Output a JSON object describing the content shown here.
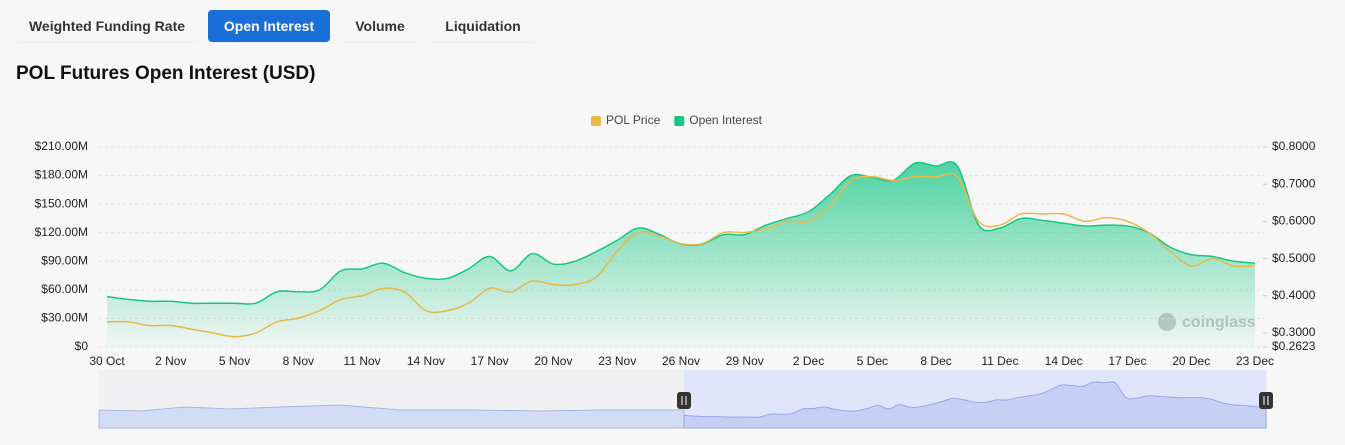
{
  "tabs": [
    "Weighted Funding Rate",
    "Open Interest",
    "Volume",
    "Liquidation"
  ],
  "active_tab": 1,
  "watermark": "coinglass",
  "chart_data": {
    "type": "area",
    "title": "POL Futures Open Interest (USD)",
    "categories": [
      "30 Oct",
      null,
      null,
      "2 Nov",
      null,
      null,
      "5 Nov",
      null,
      null,
      "8 Nov",
      null,
      null,
      "11 Nov",
      null,
      null,
      "14 Nov",
      null,
      null,
      "17 Nov",
      null,
      null,
      "20 Nov",
      null,
      null,
      "23 Nov",
      null,
      null,
      "26 Nov",
      null,
      null,
      "29 Nov",
      null,
      null,
      "2 Dec",
      null,
      null,
      "5 Dec",
      null,
      null,
      "8 Dec",
      null,
      null,
      "11 Dec",
      null,
      null,
      "14 Dec",
      null,
      null,
      "17 Dec",
      null,
      null,
      "20 Dec",
      null,
      null,
      "23 Dec"
    ],
    "series": [
      {
        "name": "POL Price",
        "color": "#e8b84a",
        "axis": "y2",
        "values": [
          0.33,
          0.33,
          0.32,
          0.32,
          0.31,
          0.3,
          0.29,
          0.3,
          0.33,
          0.34,
          0.36,
          0.39,
          0.4,
          0.42,
          0.41,
          0.36,
          0.36,
          0.38,
          0.42,
          0.41,
          0.44,
          0.43,
          0.43,
          0.45,
          0.52,
          0.57,
          0.56,
          0.54,
          0.54,
          0.57,
          0.57,
          0.58,
          0.6,
          0.6,
          0.64,
          0.71,
          0.72,
          0.71,
          0.72,
          0.72,
          0.72,
          0.6,
          0.59,
          0.62,
          0.62,
          0.62,
          0.6,
          0.61,
          0.6,
          0.57,
          0.52,
          0.48,
          0.5,
          0.48,
          0.48
        ]
      },
      {
        "name": "Open Interest",
        "color": "#16c784",
        "values": [
          53000000,
          50000000,
          48000000,
          48000000,
          46000000,
          46000000,
          46000000,
          46000000,
          58000000,
          58000000,
          60000000,
          80000000,
          82000000,
          88000000,
          78000000,
          72000000,
          72000000,
          82000000,
          95000000,
          80000000,
          98000000,
          87000000,
          90000000,
          100000000,
          112000000,
          125000000,
          118000000,
          108000000,
          108000000,
          118000000,
          118000000,
          128000000,
          135000000,
          142000000,
          160000000,
          180000000,
          178000000,
          175000000,
          193000000,
          190000000,
          190000000,
          128000000,
          125000000,
          135000000,
          133000000,
          130000000,
          127000000,
          128000000,
          127000000,
          120000000,
          105000000,
          97000000,
          95000000,
          90000000,
          88000000
        ]
      }
    ],
    "ylim": [
      0,
      210000000
    ],
    "yticks": [
      {
        "value": 0,
        "label": "$0"
      },
      {
        "value": 30000000,
        "label": "$30.00M"
      },
      {
        "value": 60000000,
        "label": "$60.00M"
      },
      {
        "value": 90000000,
        "label": "$90.00M"
      },
      {
        "value": 120000000,
        "label": "$120.00M"
      },
      {
        "value": 150000000,
        "label": "$150.00M"
      },
      {
        "value": 180000000,
        "label": "$180.00M"
      },
      {
        "value": 210000000,
        "label": "$210.00M"
      }
    ],
    "y2lim": [
      0.2623,
      0.8
    ],
    "y2ticks": [
      {
        "value": 0.2623,
        "label": "$0.2623"
      },
      {
        "value": 0.3,
        "label": "$0.3000"
      },
      {
        "value": 0.4,
        "label": "$0.4000"
      },
      {
        "value": 0.5,
        "label": "$0.5000"
      },
      {
        "value": 0.6,
        "label": "$0.6000"
      },
      {
        "value": 0.7,
        "label": "$0.7000"
      },
      {
        "value": 0.8,
        "label": "$0.8000"
      }
    ],
    "grid": true,
    "legend": "top"
  }
}
